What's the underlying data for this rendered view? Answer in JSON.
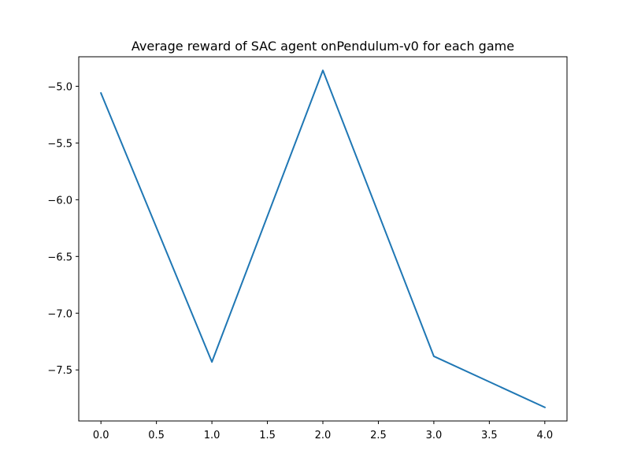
{
  "chart_data": {
    "type": "line",
    "title": "Average reward of SAC agent onPendulum-v0 for each game",
    "xlabel": "",
    "ylabel": "",
    "x": [
      0,
      1,
      2,
      3,
      4
    ],
    "series": [
      {
        "values": [
          -5.06,
          -7.43,
          -4.86,
          -7.38,
          -7.83
        ],
        "color": "#1f77b4"
      }
    ],
    "xlim": [
      -0.2,
      4.2
    ],
    "ylim": [
      -7.95,
      -4.74
    ],
    "xticks": [
      0.0,
      0.5,
      1.0,
      1.5,
      2.0,
      2.5,
      3.0,
      3.5,
      4.0
    ],
    "xtick_labels": [
      "0.0",
      "0.5",
      "1.0",
      "1.5",
      "2.0",
      "2.5",
      "3.0",
      "3.5",
      "4.0"
    ],
    "yticks": [
      -5.0,
      -5.5,
      -6.0,
      -6.5,
      -7.0,
      -7.5
    ],
    "ytick_labels": [
      "−5.0",
      "−5.5",
      "−6.0",
      "−6.5",
      "−7.0",
      "−7.5"
    ],
    "grid": false,
    "legend": "none"
  }
}
